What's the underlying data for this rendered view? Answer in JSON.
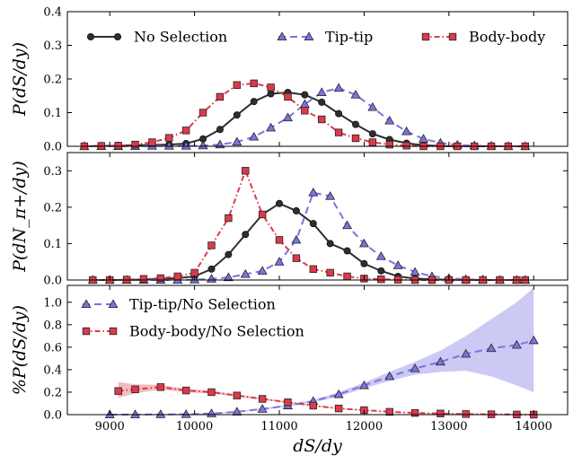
{
  "colors": {
    "no_selection": "#2b2f2e",
    "tip_tip": "#7b74de",
    "body_body": "#dd3a4b",
    "tip_tip_band": "#bbb7f2",
    "body_body_band": "#f1a3ab"
  },
  "chart_data": [
    {
      "type": "line",
      "ylabel": "P(dS/dy)",
      "ylim": [
        0,
        0.4
      ],
      "yticks": [
        "0.0",
        "0.1",
        "0.2",
        "0.3",
        "0.4"
      ],
      "yticks_values": [
        0,
        0.1,
        0.2,
        0.3,
        0.4
      ],
      "legend_placement": "top",
      "series": [
        {
          "name": "No Selection",
          "style": "solid",
          "marker": "circle",
          "x": [
            8700,
            8900,
            9100,
            9300,
            9500,
            9700,
            9900,
            10100,
            10300,
            10500,
            10700,
            10900,
            11100,
            11300,
            11500,
            11700,
            11900,
            12100,
            12300,
            12500,
            12700,
            12900,
            13100,
            13300,
            13500,
            13700,
            13900
          ],
          "y": [
            0.0,
            0.001,
            0.002,
            0.003,
            0.004,
            0.005,
            0.008,
            0.022,
            0.05,
            0.093,
            0.133,
            0.156,
            0.16,
            0.153,
            0.131,
            0.097,
            0.065,
            0.037,
            0.02,
            0.009,
            0.003,
            0.001,
            0.0,
            0.0,
            0.0,
            0.0,
            0.0
          ]
        },
        {
          "name": "Tip-tip",
          "style": "dashed",
          "marker": "triangle",
          "x": [
            8700,
            8900,
            9100,
            9300,
            9500,
            9700,
            9900,
            10100,
            10300,
            10500,
            10700,
            10900,
            11100,
            11300,
            11500,
            11700,
            11900,
            12100,
            12300,
            12500,
            12700,
            12900,
            13100,
            13300,
            13500,
            13700,
            13900
          ],
          "y": [
            0.0,
            0.0,
            0.0,
            0.0,
            0.001,
            0.001,
            0.001,
            0.002,
            0.005,
            0.013,
            0.028,
            0.055,
            0.085,
            0.125,
            0.16,
            0.173,
            0.153,
            0.116,
            0.076,
            0.044,
            0.022,
            0.01,
            0.004,
            0.002,
            0.001,
            0.0,
            0.0
          ]
        },
        {
          "name": "Body-body",
          "style": "dashdot",
          "marker": "square",
          "x": [
            8700,
            8900,
            9100,
            9300,
            9500,
            9700,
            9900,
            10100,
            10300,
            10500,
            10700,
            10900,
            11100,
            11300,
            11500,
            11700,
            11900,
            12100,
            12300,
            12500,
            12700,
            12900,
            13100,
            13300,
            13500,
            13700,
            13900
          ],
          "y": [
            0.0,
            0.001,
            0.002,
            0.005,
            0.012,
            0.025,
            0.047,
            0.1,
            0.147,
            0.182,
            0.187,
            0.175,
            0.147,
            0.106,
            0.08,
            0.041,
            0.024,
            0.012,
            0.005,
            0.002,
            0.0,
            0.0,
            0.0,
            0.0,
            0.0,
            0.0,
            0.0
          ]
        }
      ]
    },
    {
      "type": "line",
      "ylabel": "P(dN_π+/dy)",
      "ylim": [
        0,
        0.35
      ],
      "yticks": [
        "0.0",
        "0.1",
        "0.2",
        "0.3"
      ],
      "yticks_values": [
        0,
        0.1,
        0.2,
        0.3
      ],
      "series": [
        {
          "name": "No Selection",
          "style": "solid",
          "marker": "circle",
          "x": [
            8800,
            9000,
            9200,
            9400,
            9600,
            9800,
            10000,
            10200,
            10400,
            10600,
            10800,
            11000,
            11200,
            11400,
            11600,
            11800,
            12000,
            12200,
            12400,
            12600,
            12800,
            13000,
            13200,
            13400,
            13600,
            13800,
            13900
          ],
          "y": [
            0.0,
            0.0,
            0.0,
            0.001,
            0.003,
            0.005,
            0.01,
            0.03,
            0.07,
            0.125,
            0.18,
            0.21,
            0.19,
            0.155,
            0.1,
            0.08,
            0.045,
            0.025,
            0.01,
            0.004,
            0.002,
            0.001,
            0.0,
            0.0,
            0.0,
            0.0,
            0.0
          ]
        },
        {
          "name": "Tip-tip",
          "style": "dashed",
          "marker": "triangle",
          "x": [
            8800,
            9000,
            9200,
            9400,
            9600,
            9800,
            10000,
            10200,
            10400,
            10600,
            10800,
            11000,
            11200,
            11400,
            11600,
            11800,
            12000,
            12200,
            12400,
            12600,
            12800,
            13000,
            13200,
            13400,
            13600,
            13800,
            13900
          ],
          "y": [
            0.0,
            0.0,
            0.0,
            0.0,
            0.0,
            0.0,
            0.001,
            0.003,
            0.007,
            0.016,
            0.025,
            0.05,
            0.11,
            0.24,
            0.23,
            0.15,
            0.1,
            0.065,
            0.04,
            0.022,
            0.01,
            0.005,
            0.002,
            0.001,
            0.0,
            0.0,
            0.0
          ]
        },
        {
          "name": "Body-body",
          "style": "dashdot",
          "marker": "square",
          "x": [
            8800,
            9000,
            9200,
            9400,
            9600,
            9800,
            10000,
            10200,
            10400,
            10600,
            10800,
            11000,
            11200,
            11400,
            11600,
            11800,
            12000,
            12200,
            12400,
            12600,
            12800,
            13000,
            13200,
            13400,
            13600,
            13800,
            13900
          ],
          "y": [
            0.0,
            0.0,
            0.001,
            0.003,
            0.005,
            0.01,
            0.02,
            0.095,
            0.17,
            0.3,
            0.18,
            0.11,
            0.06,
            0.03,
            0.02,
            0.01,
            0.004,
            0.002,
            0.001,
            0.0,
            0.0,
            0.0,
            0.0,
            0.0,
            0.0,
            0.0,
            0.0
          ]
        }
      ]
    },
    {
      "type": "line",
      "ylabel": "%P(dS/dy)",
      "xlabel": "dS/dy",
      "xlim": [
        8500,
        14400
      ],
      "xticks": [
        "9000",
        "10000",
        "11000",
        "12000",
        "13000",
        "14000"
      ],
      "xticks_values": [
        9000,
        10000,
        11000,
        12000,
        13000,
        14000
      ],
      "ylim": [
        0,
        1.15
      ],
      "yticks": [
        "0.0",
        "0.2",
        "0.4",
        "0.6",
        "0.8",
        "1.0"
      ],
      "yticks_values": [
        0,
        0.2,
        0.4,
        0.6,
        0.8,
        1.0
      ],
      "legend_placement": "top-left",
      "series": [
        {
          "name": "Tip-tip/No Selection",
          "style": "dashed",
          "marker": "triangle",
          "x": [
            9000,
            9300,
            9600,
            9900,
            10200,
            10500,
            10800,
            11100,
            11400,
            11700,
            12000,
            12300,
            12600,
            12900,
            13200,
            13500,
            13800,
            14000
          ],
          "y": [
            0.0,
            0.001,
            0.002,
            0.003,
            0.01,
            0.025,
            0.05,
            0.08,
            0.12,
            0.18,
            0.26,
            0.34,
            0.41,
            0.47,
            0.54,
            0.59,
            0.62,
            0.66
          ],
          "band_low": [
            0.0,
            0.0,
            0.0,
            0.001,
            0.006,
            0.02,
            0.043,
            0.072,
            0.11,
            0.16,
            0.235,
            0.3,
            0.355,
            0.38,
            0.39,
            0.34,
            0.26,
            0.2
          ],
          "band_high": [
            0.002,
            0.003,
            0.005,
            0.006,
            0.015,
            0.031,
            0.058,
            0.09,
            0.132,
            0.2,
            0.285,
            0.38,
            0.47,
            0.57,
            0.7,
            0.85,
            1.0,
            1.13
          ]
        },
        {
          "name": "Body-body/No Selection",
          "style": "dashdot",
          "marker": "square",
          "x": [
            9100,
            9300,
            9600,
            9900,
            10200,
            10500,
            10800,
            11100,
            11400,
            11700,
            12000,
            12300,
            12600,
            12900,
            13200,
            13500,
            13800,
            14000
          ],
          "y": [
            0.21,
            0.225,
            0.245,
            0.215,
            0.2,
            0.17,
            0.14,
            0.11,
            0.08,
            0.055,
            0.04,
            0.025,
            0.015,
            0.01,
            0.005,
            0.003,
            0.001,
            0.0
          ],
          "band_low": [
            0.15,
            0.19,
            0.225,
            0.2,
            0.188,
            0.16,
            0.132,
            0.103,
            0.074,
            0.05,
            0.036,
            0.022,
            0.012,
            0.007,
            0.003,
            0.001,
            0.0,
            0.0
          ],
          "band_high": [
            0.29,
            0.27,
            0.265,
            0.23,
            0.212,
            0.18,
            0.148,
            0.117,
            0.086,
            0.06,
            0.044,
            0.028,
            0.018,
            0.013,
            0.007,
            0.005,
            0.003,
            0.002
          ]
        }
      ]
    }
  ]
}
